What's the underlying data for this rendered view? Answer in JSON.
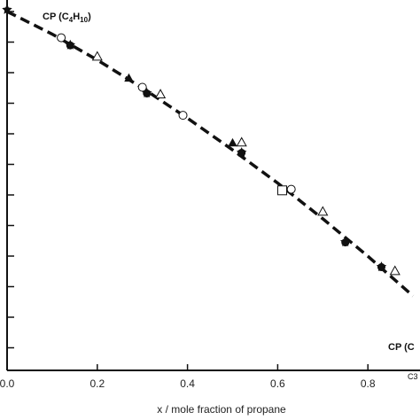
{
  "chart_data": {
    "type": "scatter",
    "xlabel": "x / mole fraction of propane",
    "xlim": [
      0.0,
      0.9
    ],
    "x_ticks": [
      "0.0",
      "0.2",
      "0.4",
      "0.6",
      "0.8"
    ],
    "annotations": {
      "cp_c4": "CP (C",
      "cp_c4_sub4": "4",
      "cp_c4_h": "H",
      "cp_c4_sub10": "10",
      "cp_c4_close": ")",
      "cp_c3": "CP (C",
      "corner": "C3"
    },
    "trend_line": {
      "style": "dashed",
      "x": [
        0.0,
        0.1,
        0.2,
        0.3,
        0.4,
        0.5,
        0.6,
        0.7,
        0.8,
        0.9
      ],
      "y": [
        0.0,
        0.062,
        0.133,
        0.21,
        0.293,
        0.38,
        0.471,
        0.569,
        0.672,
        0.781
      ]
    },
    "series": [
      {
        "marker": "open-circle",
        "x": [
          0.12,
          0.3,
          0.39,
          0.63
        ],
        "y": [
          0.072,
          0.208,
          0.285,
          0.488
        ]
      },
      {
        "marker": "filled-circle",
        "x": [
          0.14,
          0.31,
          0.52,
          0.75,
          0.83
        ],
        "y": [
          0.093,
          0.225,
          0.388,
          0.634,
          0.702
        ]
      },
      {
        "marker": "open-triangle",
        "x": [
          0.2,
          0.34,
          0.52,
          0.7,
          0.86
        ],
        "y": [
          0.124,
          0.228,
          0.36,
          0.55,
          0.713
        ]
      },
      {
        "marker": "filled-triangle",
        "x": [
          0.27,
          0.5
        ],
        "y": [
          0.183,
          0.361
        ]
      },
      {
        "marker": "open-square",
        "x": [
          0.61
        ],
        "y": [
          0.491
        ]
      },
      {
        "marker": "star",
        "x": [
          0.0,
          0.14,
          0.31,
          0.52,
          0.75,
          0.83
        ],
        "y": [
          -0.005,
          0.092,
          0.224,
          0.387,
          0.633,
          0.701
        ]
      }
    ]
  }
}
